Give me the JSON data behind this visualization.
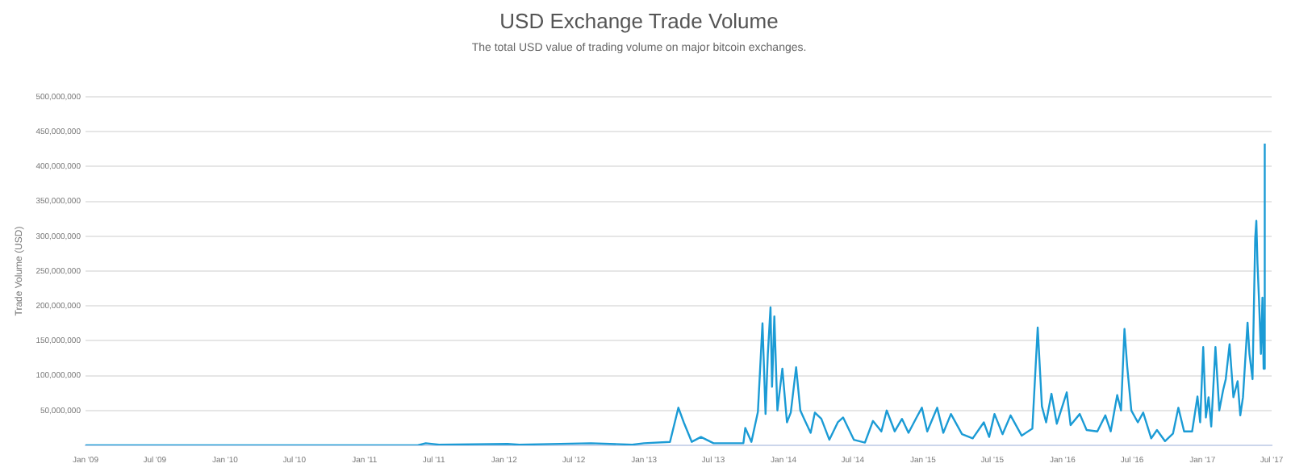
{
  "chart_data": {
    "type": "line",
    "title": "USD Exchange Trade Volume",
    "subtitle": "The total USD value of trading volume on major bitcoin exchanges.",
    "ylabel": "Trade Volume (USD)",
    "x": [
      "2009-01-01",
      "2011-05-20",
      "2011-06-10",
      "2011-07-15",
      "2012-01-10",
      "2012-02-10",
      "2012-08-15",
      "2012-12-01",
      "2013-01-01",
      "2013-03-10",
      "2013-04-01",
      "2013-04-15",
      "2013-05-06",
      "2013-05-30",
      "2013-07-02",
      "2013-09-18",
      "2013-09-23",
      "2013-10-09",
      "2013-10-26",
      "2013-11-07",
      "2013-11-15",
      "2013-11-21",
      "2013-11-28",
      "2013-12-02",
      "2013-12-08",
      "2013-12-16",
      "2013-12-29",
      "2014-01-10",
      "2014-01-20",
      "2014-02-03",
      "2014-02-14",
      "2014-02-24",
      "2014-03-13",
      "2014-03-24",
      "2014-04-10",
      "2014-05-01",
      "2014-05-23",
      "2014-06-06",
      "2014-07-04",
      "2014-08-02",
      "2014-08-23",
      "2014-09-14",
      "2014-09-28",
      "2014-10-19",
      "2014-11-07",
      "2014-11-24",
      "2014-12-15",
      "2014-12-29",
      "2015-01-12",
      "2015-02-07",
      "2015-02-23",
      "2015-03-15",
      "2015-04-13",
      "2015-05-11",
      "2015-06-09",
      "2015-06-23",
      "2015-07-07",
      "2015-07-28",
      "2015-08-18",
      "2015-09-16",
      "2015-10-14",
      "2015-10-28",
      "2015-11-08",
      "2015-11-19",
      "2015-12-03",
      "2015-12-17",
      "2016-01-12",
      "2016-01-22",
      "2016-02-15",
      "2016-03-04",
      "2016-04-01",
      "2016-04-22",
      "2016-05-06",
      "2016-05-23",
      "2016-06-02",
      "2016-06-11",
      "2016-06-18",
      "2016-06-29",
      "2016-07-16",
      "2016-07-30",
      "2016-08-20",
      "2016-09-04",
      "2016-09-25",
      "2016-10-16",
      "2016-10-30",
      "2016-11-14",
      "2016-12-05",
      "2016-12-19",
      "2016-12-26",
      "2017-01-03",
      "2017-01-10",
      "2017-01-17",
      "2017-01-24",
      "2017-02-04",
      "2017-02-14",
      "2017-02-24",
      "2017-03-03",
      "2017-03-13",
      "2017-03-23",
      "2017-04-03",
      "2017-04-10",
      "2017-04-17",
      "2017-04-29",
      "2017-05-04",
      "2017-05-12",
      "2017-05-19",
      "2017-05-22",
      "2017-05-25",
      "2017-05-29",
      "2017-06-03",
      "2017-06-07",
      "2017-06-10",
      "2017-06-13"
    ],
    "series": [
      {
        "color": "#1b9bd5",
        "values": [
          0,
          0,
          3000000,
          1000000,
          2000000,
          1000000,
          3000000,
          1000000,
          3000000,
          5000000,
          54000000,
          33000000,
          5000000,
          12000000,
          3000000,
          3000000,
          25000000,
          5000000,
          48000000,
          175000000,
          45000000,
          131000000,
          198000000,
          84000000,
          185000000,
          50000000,
          110000000,
          33000000,
          47000000,
          112000000,
          50000000,
          38000000,
          18000000,
          47000000,
          38000000,
          8000000,
          33000000,
          40000000,
          8000000,
          4000000,
          35000000,
          20000000,
          50000000,
          20000000,
          38000000,
          18000000,
          40000000,
          54000000,
          20000000,
          54000000,
          18000000,
          45000000,
          16000000,
          10000000,
          33000000,
          12000000,
          45000000,
          16000000,
          43000000,
          14000000,
          24000000,
          169000000,
          56000000,
          33000000,
          74000000,
          31000000,
          76000000,
          29000000,
          45000000,
          22000000,
          20000000,
          43000000,
          20000000,
          72000000,
          50000000,
          167000000,
          114000000,
          50000000,
          33000000,
          47000000,
          10000000,
          22000000,
          6000000,
          17000000,
          54000000,
          20000000,
          20000000,
          70000000,
          33000000,
          141000000,
          40000000,
          69000000,
          27000000,
          141000000,
          50000000,
          79000000,
          95000000,
          145000000,
          69000000,
          92000000,
          43000000,
          69000000,
          176000000,
          131000000,
          95000000,
          297000000,
          322000000,
          261000000,
          208000000,
          131000000,
          212000000,
          110000000,
          433000000
        ]
      }
    ],
    "xlim": [
      "2009-01",
      "2017-07"
    ],
    "xticks": [
      {
        "value": "2009-01",
        "label": "Jan '09"
      },
      {
        "value": "2009-07",
        "label": "Jul '09"
      },
      {
        "value": "2010-01",
        "label": "Jan '10"
      },
      {
        "value": "2010-07",
        "label": "Jul '10"
      },
      {
        "value": "2011-01",
        "label": "Jan '11"
      },
      {
        "value": "2011-07",
        "label": "Jul '11"
      },
      {
        "value": "2012-01",
        "label": "Jan '12"
      },
      {
        "value": "2012-07",
        "label": "Jul '12"
      },
      {
        "value": "2013-01",
        "label": "Jan '13"
      },
      {
        "value": "2013-07",
        "label": "Jul '13"
      },
      {
        "value": "2014-01",
        "label": "Jan '14"
      },
      {
        "value": "2014-07",
        "label": "Jul '14"
      },
      {
        "value": "2015-01",
        "label": "Jan '15"
      },
      {
        "value": "2015-07",
        "label": "Jul '15"
      },
      {
        "value": "2016-01",
        "label": "Jan '16"
      },
      {
        "value": "2016-07",
        "label": "Jul '16"
      },
      {
        "value": "2017-01",
        "label": "Jan '17"
      },
      {
        "value": "2017-07",
        "label": "Jul '17"
      }
    ],
    "ylim": [
      0,
      500000000
    ],
    "yticks": [
      {
        "value": 0,
        "label": null
      },
      {
        "value": 50000000,
        "label": "50,000,000"
      },
      {
        "value": 100000000,
        "label": "100,000,000"
      },
      {
        "value": 150000000,
        "label": "150,000,000"
      },
      {
        "value": 200000000,
        "label": "200,000,000"
      },
      {
        "value": 250000000,
        "label": "250,000,000"
      },
      {
        "value": 300000000,
        "label": "300,000,000"
      },
      {
        "value": 350000000,
        "label": "350,000,000"
      },
      {
        "value": 400000000,
        "label": "400,000,000"
      },
      {
        "value": 450000000,
        "label": "450,000,000"
      },
      {
        "value": 500000000,
        "label": "500,000,000"
      }
    ],
    "grid": "y",
    "marker": "none",
    "line_style": "solid",
    "legend": false
  }
}
